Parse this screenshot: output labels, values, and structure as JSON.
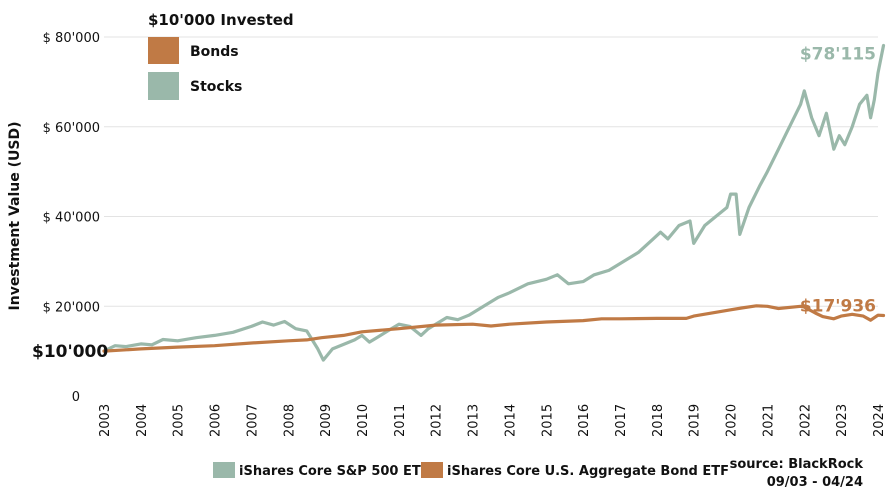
{
  "chart_data": {
    "type": "line",
    "title": "$10'000 Invested",
    "ylabel": "Investment Value (USD)",
    "xlabel": "",
    "ylim": [
      0,
      80000
    ],
    "xlim": [
      2003,
      2024
    ],
    "grid": "horizontal",
    "y_ticks": [
      {
        "value": 0,
        "label": "0"
      },
      {
        "value": 20000,
        "label": "$ 20'000"
      },
      {
        "value": 40000,
        "label": "$ 40'000"
      },
      {
        "value": 60000,
        "label": "$ 60'000"
      },
      {
        "value": 80000,
        "label": "$ 80'000"
      }
    ],
    "x_ticks": [
      "2003",
      "2004",
      "2005",
      "2006",
      "2007",
      "2008",
      "2009",
      "2010",
      "2011",
      "2012",
      "2013",
      "2014",
      "2015",
      "2016",
      "2017",
      "2018",
      "2019",
      "2020",
      "2021",
      "2022",
      "2023",
      "2024"
    ],
    "legend_top": [
      {
        "label": "Bonds",
        "color": "#c07a45"
      },
      {
        "label": "Stocks",
        "color": "#9ab8aa"
      }
    ],
    "start_label": "$10'000",
    "series": [
      {
        "name": "iShares Core S&P 500 ETF",
        "short": "Stocks",
        "color": "#9ab8aa",
        "end_label": "$78'115",
        "points": [
          [
            2003.0,
            10000
          ],
          [
            2003.3,
            11200
          ],
          [
            2003.6,
            11000
          ],
          [
            2004.0,
            11600
          ],
          [
            2004.3,
            11400
          ],
          [
            2004.6,
            12600
          ],
          [
            2005.0,
            12300
          ],
          [
            2005.5,
            13000
          ],
          [
            2006.0,
            13500
          ],
          [
            2006.5,
            14200
          ],
          [
            2007.0,
            15500
          ],
          [
            2007.3,
            16500
          ],
          [
            2007.6,
            15800
          ],
          [
            2007.9,
            16600
          ],
          [
            2008.2,
            15000
          ],
          [
            2008.5,
            14500
          ],
          [
            2008.8,
            10500
          ],
          [
            2008.95,
            8000
          ],
          [
            2009.2,
            10500
          ],
          [
            2009.5,
            11500
          ],
          [
            2009.8,
            12500
          ],
          [
            2010.0,
            13500
          ],
          [
            2010.2,
            12000
          ],
          [
            2010.4,
            13000
          ],
          [
            2010.7,
            14500
          ],
          [
            2011.0,
            16000
          ],
          [
            2011.3,
            15500
          ],
          [
            2011.6,
            13500
          ],
          [
            2011.8,
            15000
          ],
          [
            2012.0,
            16000
          ],
          [
            2012.3,
            17500
          ],
          [
            2012.6,
            17000
          ],
          [
            2012.9,
            18000
          ],
          [
            2013.0,
            18500
          ],
          [
            2013.3,
            20000
          ],
          [
            2013.7,
            22000
          ],
          [
            2014.0,
            23000
          ],
          [
            2014.5,
            25000
          ],
          [
            2015.0,
            26000
          ],
          [
            2015.3,
            27000
          ],
          [
            2015.6,
            25000
          ],
          [
            2016.0,
            25500
          ],
          [
            2016.3,
            27000
          ],
          [
            2016.7,
            28000
          ],
          [
            2017.0,
            29500
          ],
          [
            2017.5,
            32000
          ],
          [
            2017.9,
            35000
          ],
          [
            2018.1,
            36500
          ],
          [
            2018.3,
            35000
          ],
          [
            2018.6,
            38000
          ],
          [
            2018.9,
            39000
          ],
          [
            2019.0,
            34000
          ],
          [
            2019.3,
            38000
          ],
          [
            2019.6,
            40000
          ],
          [
            2019.9,
            42000
          ],
          [
            2020.0,
            45000
          ],
          [
            2020.15,
            45000
          ],
          [
            2020.25,
            36000
          ],
          [
            2020.5,
            42000
          ],
          [
            2020.8,
            47000
          ],
          [
            2021.0,
            50000
          ],
          [
            2021.3,
            55000
          ],
          [
            2021.6,
            60000
          ],
          [
            2021.9,
            65000
          ],
          [
            2022.0,
            68000
          ],
          [
            2022.2,
            62000
          ],
          [
            2022.4,
            58000
          ],
          [
            2022.6,
            63000
          ],
          [
            2022.8,
            55000
          ],
          [
            2022.95,
            58000
          ],
          [
            2023.1,
            56000
          ],
          [
            2023.3,
            60000
          ],
          [
            2023.5,
            65000
          ],
          [
            2023.7,
            67000
          ],
          [
            2023.8,
            62000
          ],
          [
            2023.9,
            66000
          ],
          [
            2024.0,
            72000
          ],
          [
            2024.15,
            78115
          ]
        ]
      },
      {
        "name": "iShares Core U.S. Aggregate Bond ETF",
        "short": "Bonds",
        "color": "#c07a45",
        "end_label": "$17'936",
        "points": [
          [
            2003.0,
            10000
          ],
          [
            2004.0,
            10500
          ],
          [
            2005.0,
            10900
          ],
          [
            2006.0,
            11200
          ],
          [
            2007.0,
            11800
          ],
          [
            2008.0,
            12300
          ],
          [
            2008.5,
            12500
          ],
          [
            2008.9,
            13000
          ],
          [
            2009.5,
            13500
          ],
          [
            2010.0,
            14300
          ],
          [
            2011.0,
            15000
          ],
          [
            2012.0,
            15800
          ],
          [
            2013.0,
            16000
          ],
          [
            2013.5,
            15600
          ],
          [
            2014.0,
            16000
          ],
          [
            2015.0,
            16500
          ],
          [
            2016.0,
            16800
          ],
          [
            2016.5,
            17200
          ],
          [
            2017.0,
            17200
          ],
          [
            2018.0,
            17300
          ],
          [
            2018.8,
            17300
          ],
          [
            2019.0,
            17800
          ],
          [
            2020.0,
            19200
          ],
          [
            2020.3,
            19600
          ],
          [
            2020.7,
            20100
          ],
          [
            2021.0,
            20000
          ],
          [
            2021.3,
            19500
          ],
          [
            2021.9,
            20000
          ],
          [
            2022.0,
            19800
          ],
          [
            2022.3,
            18500
          ],
          [
            2022.5,
            17700
          ],
          [
            2022.8,
            17200
          ],
          [
            2023.0,
            17800
          ],
          [
            2023.3,
            18200
          ],
          [
            2023.6,
            17800
          ],
          [
            2023.8,
            16900
          ],
          [
            2024.0,
            18000
          ],
          [
            2024.15,
            17936
          ]
        ]
      }
    ],
    "source_lines": [
      "source: BlackRock",
      "09/03 - 04/24"
    ]
  }
}
